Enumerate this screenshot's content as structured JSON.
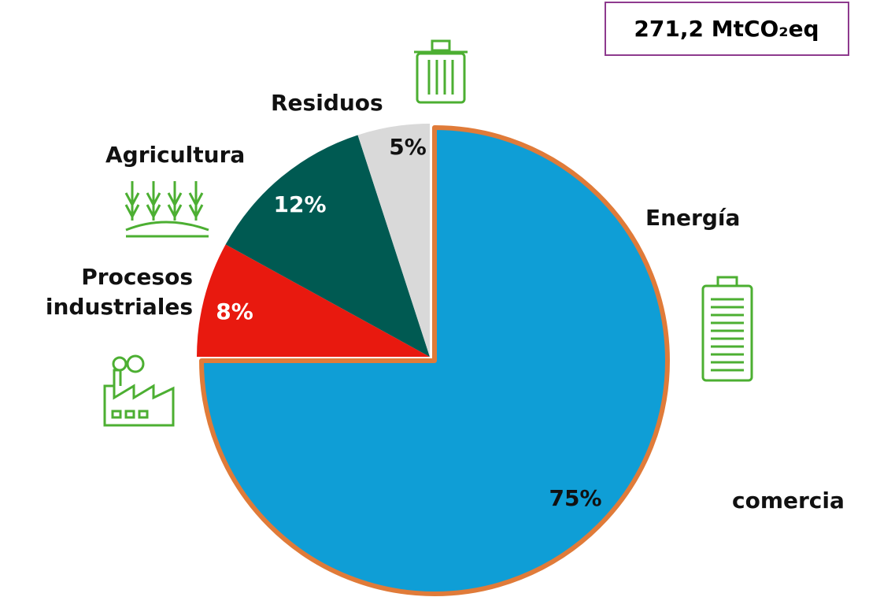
{
  "chart_data": {
    "type": "pie",
    "title": "271,2 MtCO₂eq",
    "categories": [
      "Energía",
      "Procesos industriales",
      "Agricultura",
      "Residuos"
    ],
    "values": [
      75,
      8,
      12,
      5
    ],
    "value_labels": [
      "75%",
      "8%",
      "12%",
      "5%"
    ],
    "colors": [
      "#0f9ed6",
      "#e8190f",
      "#005a52",
      "#d9d9d9"
    ],
    "annotations": [
      "comercia"
    ]
  }
}
